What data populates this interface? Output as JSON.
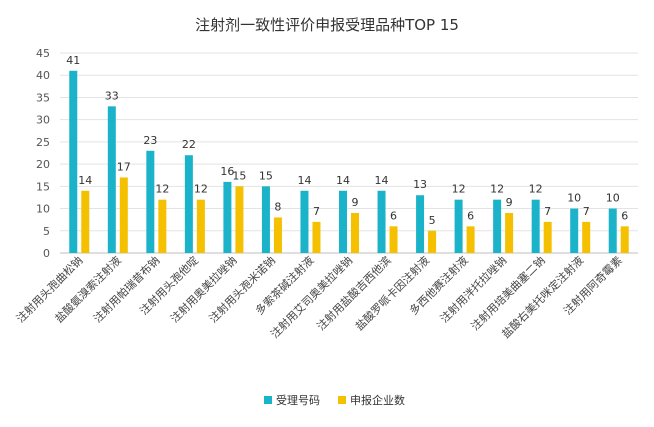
{
  "chart_data": {
    "type": "bar",
    "title": "注射剂一致性评价申报受理品种TOP 15",
    "categories": [
      "注射用头孢曲松钠",
      "盐酸氨溴索注射液",
      "注射用帕瑞昔布钠",
      "注射用头孢他啶",
      "注射用奥美拉唑钠",
      "注射用头孢米诺钠",
      "多索茶碱注射液",
      "注射用艾司奥美拉唑钠",
      "注射用盐酸吉西他滨",
      "盐酸罗哌卡因注射液",
      "多西他赛注射液",
      "注射用泮托拉唑钠",
      "注射用培美曲塞二钠",
      "盐酸右美托咪定注射液",
      "注射用阿奇霉素"
    ],
    "series": [
      {
        "name": "受理号码",
        "color": "#1BB3C9",
        "values": [
          41,
          33,
          23,
          22,
          16,
          15,
          14,
          14,
          14,
          13,
          12,
          12,
          12,
          10,
          10
        ]
      },
      {
        "name": "申报企业数",
        "color": "#F5C000",
        "values": [
          14,
          17,
          12,
          12,
          15,
          8,
          7,
          9,
          6,
          5,
          6,
          9,
          7,
          7,
          6
        ]
      }
    ],
    "y_ticks": [
      0,
      5,
      10,
      15,
      20,
      25,
      30,
      35,
      40,
      45
    ],
    "ylim": [
      0,
      45
    ],
    "grid": true,
    "legend_position": "bottom",
    "data_labels": true
  }
}
